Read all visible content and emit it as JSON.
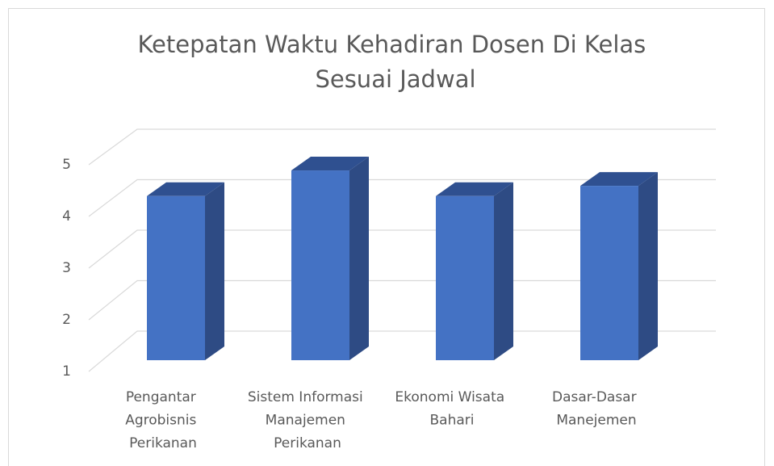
{
  "chart_data": {
    "type": "bar3d",
    "title": "Ketepatan Waktu Kehadiran Dosen Di Kelas Sesuai Jadwal",
    "categories": [
      "Pengantar Agrobisnis Perikanan",
      "Sistem Informasi Manajemen Perikanan",
      "Ekonomi Wisata Bahari",
      "Dasar-Dasar Manejemen"
    ],
    "values": [
      4.2,
      4.7,
      4.2,
      4.4
    ],
    "color": "#4472c4",
    "ylim": [
      1,
      5
    ],
    "yticks": [
      1,
      2,
      3,
      4,
      5
    ],
    "grid": true
  }
}
